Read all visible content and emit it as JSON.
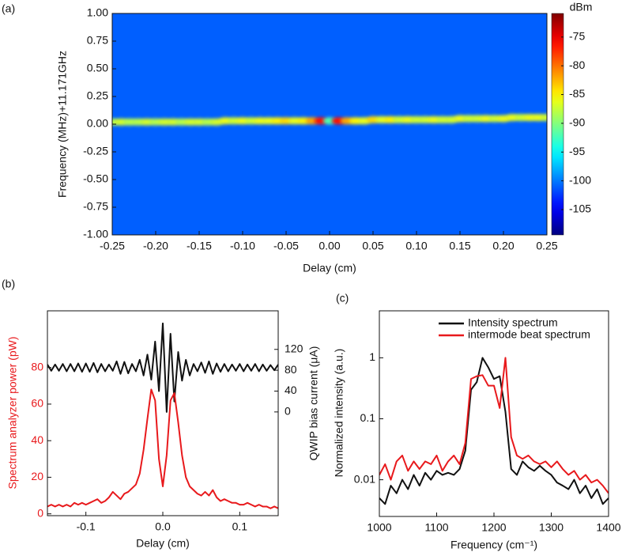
{
  "chart_data": [
    {
      "type": "heatmap",
      "panel_label": "(a)",
      "x_label": "Delay (cm)",
      "y_label": "Frequency (MHz)+11.171GHz",
      "colorbar_label": "dBm",
      "xlim": [
        -0.25,
        0.25
      ],
      "xticks": [
        -0.25,
        {
          "value": -0.2,
          "label": "-0.20"
        },
        -0.15,
        {
          "value": -0.1,
          "label": "-0.10"
        },
        -0.05,
        {
          "value": 0,
          "label": "0.00"
        },
        0.05,
        {
          "value": 0.1,
          "label": "0.10"
        },
        0.15,
        {
          "value": 0.2,
          "label": "0.20"
        },
        0.25
      ],
      "ylim": [
        -1,
        1
      ],
      "yticks": [
        {
          "value": 1,
          "label": "1.00"
        },
        0.75,
        {
          "value": 0.5,
          "label": "0.50"
        },
        0.25,
        {
          "value": 0,
          "label": "0.00"
        },
        -0.25,
        {
          "value": -0.5,
          "label": "-0.50"
        },
        -0.75,
        {
          "value": -1,
          "label": "-1.00"
        }
      ],
      "zlim": [
        -109.4,
        -70.9
      ],
      "zticks": [
        -75,
        -80,
        -85,
        -90,
        -95,
        -100,
        -105
      ],
      "background_level": -101,
      "x": [
        -0.25,
        -0.24,
        -0.23,
        -0.22,
        -0.21,
        -0.2,
        -0.19,
        -0.18,
        -0.17,
        -0.16,
        -0.15,
        -0.14,
        -0.13,
        -0.12,
        -0.11,
        -0.1,
        -0.09,
        -0.08,
        -0.07,
        -0.06,
        -0.05,
        -0.04,
        -0.03,
        -0.02,
        -0.01,
        0,
        0.01,
        0.02,
        0.03,
        0.04,
        0.05,
        0.06,
        0.07,
        0.08,
        0.09,
        0.1,
        0.11,
        0.12,
        0.13,
        0.14,
        0.15,
        0.16,
        0.17,
        0.18,
        0.19,
        0.2,
        0.21,
        0.22,
        0.23,
        0.24,
        0.25
      ],
      "ridge_center": [
        0.02,
        0.02,
        0.02,
        0.02,
        0.02,
        0.02,
        0.02,
        0.02,
        0.02,
        0.02,
        0.02,
        0.02,
        0.02,
        0.03,
        0.03,
        0.03,
        0.03,
        0.03,
        0.03,
        0.03,
        0.03,
        0.03,
        0.03,
        0.03,
        0.03,
        0.03,
        0.03,
        0.03,
        0.03,
        0.03,
        0.04,
        0.04,
        0.04,
        0.04,
        0.04,
        0.04,
        0.04,
        0.04,
        0.04,
        0.04,
        0.05,
        0.05,
        0.05,
        0.05,
        0.05,
        0.05,
        0.06,
        0.06,
        0.06,
        0.06,
        0.06
      ],
      "ridge_level": [
        -88,
        -87,
        -88,
        -88,
        -87,
        -88,
        -87,
        -87,
        -88,
        -87,
        -87,
        -88,
        -87,
        -86,
        -87,
        -86,
        -87,
        -86,
        -86,
        -85,
        -84,
        -86,
        -85,
        -82,
        -76,
        -92,
        -76,
        -82,
        -85,
        -86,
        -84,
        -86,
        -85,
        -87,
        -86,
        -87,
        -87,
        -86,
        -87,
        -87,
        -86,
        -87,
        -87,
        -86,
        -87,
        -86,
        -86,
        -87,
        -86,
        -86,
        -87
      ]
    },
    {
      "type": "line",
      "panel_label": "(b)",
      "x_label": "Delay (cm)",
      "y_label": "Spectrum analyzer power (pW)",
      "y2_label": "QWIP bias current (μA)",
      "xlim": [
        -0.15,
        0.15
      ],
      "xticks": [
        -0.1,
        {
          "value": 0,
          "label": "0.0"
        },
        0.1
      ],
      "ylim": [
        -1,
        111
      ],
      "yticks": [
        0,
        20,
        40,
        60,
        80
      ],
      "y2lim": [
        -199,
        194
      ],
      "y2ticks": [
        0,
        40,
        80,
        120
      ],
      "x": [
        -0.15,
        -0.145,
        -0.14,
        -0.135,
        -0.13,
        -0.125,
        -0.12,
        -0.115,
        -0.11,
        -0.105,
        -0.1,
        -0.095,
        -0.09,
        -0.085,
        -0.08,
        -0.075,
        -0.07,
        -0.065,
        -0.06,
        -0.055,
        -0.05,
        -0.045,
        -0.04,
        -0.035,
        -0.03,
        -0.025,
        -0.02,
        -0.015,
        -0.01,
        -0.005,
        0,
        0.005,
        0.01,
        0.015,
        0.02,
        0.025,
        0.03,
        0.035,
        0.04,
        0.045,
        0.05,
        0.055,
        0.06,
        0.065,
        0.07,
        0.075,
        0.08,
        0.085,
        0.09,
        0.095,
        0.1,
        0.105,
        0.11,
        0.115,
        0.12,
        0.125,
        0.13,
        0.135,
        0.14,
        0.145,
        0.15
      ],
      "series": [
        {
          "color": "#111111",
          "axis": "y2",
          "values": [
            91,
            79,
            91,
            79,
            92,
            78,
            92,
            78,
            93,
            77,
            93,
            77,
            94,
            76,
            92,
            78,
            91,
            79,
            97,
            73,
            96,
            74,
            92,
            78,
            100,
            70,
            110,
            62,
            135,
            40,
            170,
            0,
            150,
            20,
            115,
            60,
            100,
            70,
            92,
            78,
            95,
            75,
            97,
            73,
            93,
            77,
            92,
            78,
            91,
            79,
            92,
            78,
            91,
            79,
            92,
            78,
            91,
            79,
            90,
            80,
            91
          ]
        },
        {
          "color": "#e8191c",
          "values": [
            4,
            5,
            4,
            5,
            4,
            5,
            4,
            6,
            5,
            6,
            5,
            6,
            7,
            8,
            6,
            7,
            9,
            12,
            10,
            8,
            11,
            12,
            14,
            16,
            22,
            35,
            52,
            68,
            62,
            30,
            15,
            32,
            62,
            66,
            50,
            32,
            20,
            15,
            13,
            11,
            10,
            12,
            10,
            13,
            9,
            7,
            8,
            7,
            6,
            6,
            5,
            5,
            6,
            5,
            4,
            5,
            4,
            4,
            3,
            4,
            3
          ]
        }
      ]
    },
    {
      "type": "line",
      "panel_label": "(c)",
      "x_label": "Frequency (cm⁻¹)",
      "y_label": "Normalized intensity (a.u.)",
      "log_y": true,
      "legend": "upper right",
      "xlim": [
        1000,
        1400
      ],
      "xticks": [
        1000,
        1100,
        1200,
        1300,
        1400
      ],
      "ylim": [
        0.0025,
        5.9
      ],
      "yticks": [
        0.01,
        0.1,
        1
      ],
      "x": [
        1000,
        1010,
        1020,
        1030,
        1040,
        1050,
        1060,
        1070,
        1080,
        1090,
        1100,
        1110,
        1120,
        1130,
        1140,
        1150,
        1160,
        1170,
        1180,
        1190,
        1200,
        1210,
        1220,
        1230,
        1240,
        1250,
        1260,
        1270,
        1280,
        1290,
        1300,
        1310,
        1320,
        1330,
        1340,
        1350,
        1360,
        1370,
        1380,
        1390,
        1400
      ],
      "series": [
        {
          "name": "Intensity spectrum",
          "color": "#111111",
          "values": [
            0.005,
            0.004,
            0.008,
            0.006,
            0.01,
            0.007,
            0.012,
            0.008,
            0.013,
            0.01,
            0.014,
            0.012,
            0.013,
            0.012,
            0.015,
            0.03,
            0.3,
            0.4,
            1.0,
            0.7,
            0.45,
            0.5,
            0.13,
            0.015,
            0.012,
            0.02,
            0.016,
            0.014,
            0.017,
            0.014,
            0.012,
            0.009,
            0.008,
            0.007,
            0.01,
            0.006,
            0.008,
            0.005,
            0.007,
            0.004,
            0.005
          ]
        },
        {
          "name": "intermode beat spectrum",
          "color": "#e8191c",
          "values": [
            0.012,
            0.018,
            0.01,
            0.02,
            0.025,
            0.014,
            0.02,
            0.015,
            0.02,
            0.018,
            0.025,
            0.014,
            0.02,
            0.025,
            0.018,
            0.04,
            0.45,
            0.5,
            0.52,
            0.35,
            0.35,
            0.15,
            1.0,
            0.05,
            0.025,
            0.022,
            0.025,
            0.02,
            0.018,
            0.02,
            0.016,
            0.02,
            0.015,
            0.012,
            0.014,
            0.01,
            0.012,
            0.009,
            0.01,
            0.008,
            0.006
          ]
        }
      ]
    }
  ]
}
